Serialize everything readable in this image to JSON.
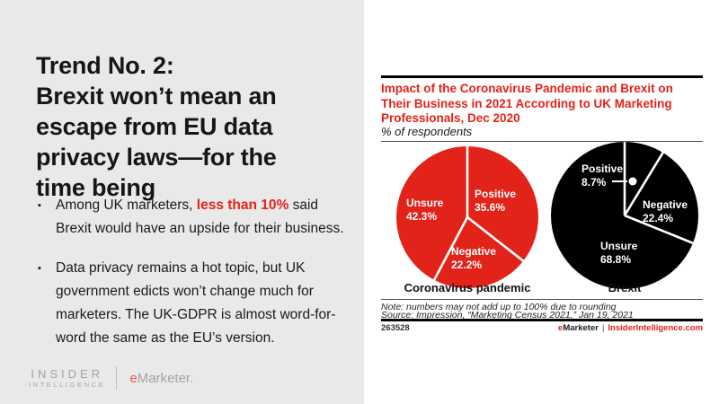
{
  "slide": {
    "title": "Trend No. 2:\nBrexit won’t mean an\nescape from EU data\nprivacy laws—for the\ntime being",
    "bullet_marker": "▪",
    "bullets": [
      {
        "pre": "Among UK marketers, ",
        "highlight": "less than 10%",
        "post": " said Brexit would have an upside for their business."
      },
      {
        "pre": "Data privacy remains a hot topic, but UK government edicts won’t change much for marketers. The UK-GDPR is almost word-for-word the same as the EU’s version.",
        "highlight": "",
        "post": ""
      }
    ],
    "logo": {
      "line1": "INSIDER",
      "line2": "INTELLIGENCE",
      "brand_e": "e",
      "brand_rest": "Marketer."
    }
  },
  "chart": {
    "title": "Impact of the Coronavirus Pandemic and Brexit on\nTheir Business in 2021 According to UK Marketing\nProfessionals, Dec 2020",
    "subtitle": "% of respondents",
    "note": "Note: numbers may not add up to 100% due to rounding",
    "source": "Source: Impression, “Marketing Census 2021,” Jan 19, 2021",
    "chart_id": "263528",
    "footer": {
      "brand_e": "e",
      "brand_rest": "Marketer",
      "separator": "|",
      "site": "InsiderIntelligence.com"
    },
    "colors": {
      "accent_red": "#e2231a",
      "pie_black": "#000000",
      "panel_gray": "#e9e9e9"
    }
  },
  "chart_data": {
    "type": "pie",
    "title": "Impact of the Coronavirus Pandemic and Brexit on Their Business in 2021 According to UK Marketing Professionals, Dec 2020",
    "subtitle": "% of respondents",
    "unit": "%",
    "start_angle_deg": 0,
    "direction": "clockwise",
    "pies": [
      {
        "label": "Coronavirus pandemic",
        "color": "#e2231a",
        "slices": [
          {
            "name": "Positive",
            "value": 35.6
          },
          {
            "name": "Negative",
            "value": 22.2
          },
          {
            "name": "Unsure",
            "value": 42.3
          }
        ]
      },
      {
        "label": "Brexit",
        "color": "#000000",
        "slices": [
          {
            "name": "Positive",
            "value": 8.7
          },
          {
            "name": "Negative",
            "value": 22.4
          },
          {
            "name": "Unsure",
            "value": 68.8
          }
        ]
      }
    ],
    "note": "Note: numbers may not add up to 100% due to rounding",
    "source": "Source: Impression, “Marketing Census 2021,” Jan 19, 2021"
  }
}
